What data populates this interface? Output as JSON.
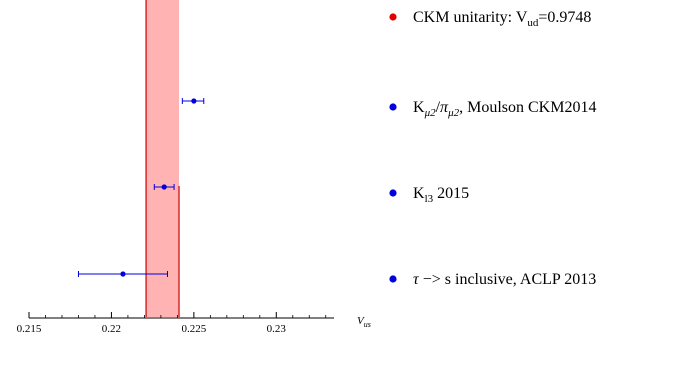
{
  "chart_data": {
    "type": "scatter",
    "title": "",
    "xlabel": "V",
    "xlabel_sub": "us",
    "ylabel": "",
    "xlim": [
      0.215,
      0.2335
    ],
    "x_ticks": [
      {
        "value": 0.215,
        "label": "0.215"
      },
      {
        "value": 0.22,
        "label": "0.22"
      },
      {
        "value": 0.225,
        "label": "0.225"
      },
      {
        "value": 0.23,
        "label": "0.23"
      }
    ],
    "grid": false,
    "legend_position": "right",
    "band": {
      "name": "CKM unitarity",
      "x_low": 0.2221,
      "x_high": 0.2241,
      "fill_color": "#ffb3b3",
      "edge_color": "#cc0000"
    },
    "series": [
      {
        "id": "band",
        "marker_color": "#e00000",
        "label_parts": [
          {
            "text": "CKM unitarity: V"
          },
          {
            "text": "ud",
            "sub": true
          },
          {
            "text": "=0.9748"
          }
        ]
      },
      {
        "id": "kmu2",
        "marker_color": "#0000dd",
        "point": {
          "x": 0.225,
          "err_low": 0.0007,
          "err_high": 0.0006
        },
        "label_parts": [
          {
            "text": "K"
          },
          {
            "text": "μ2",
            "sub": true,
            "italic": true
          },
          {
            "text": "/"
          },
          {
            "text": "π",
            "italic": true
          },
          {
            "text": "μ2",
            "sub": true,
            "italic": true
          },
          {
            "text": ", Moulson CKM2014"
          }
        ]
      },
      {
        "id": "kl3",
        "marker_color": "#0000dd",
        "point": {
          "x": 0.2232,
          "err_low": 0.0006,
          "err_high": 0.0006
        },
        "label_parts": [
          {
            "text": "K"
          },
          {
            "text": "l3",
            "sub": true
          },
          {
            "text": " 2015"
          }
        ]
      },
      {
        "id": "tau",
        "marker_color": "#0000dd",
        "point": {
          "x": 0.2207,
          "err_low": 0.0027,
          "err_high": 0.0027
        },
        "label_parts": [
          {
            "text": "τ",
            "italic": true
          },
          {
            "text": " −> s inclusive, ACLP 2013"
          }
        ]
      }
    ]
  }
}
